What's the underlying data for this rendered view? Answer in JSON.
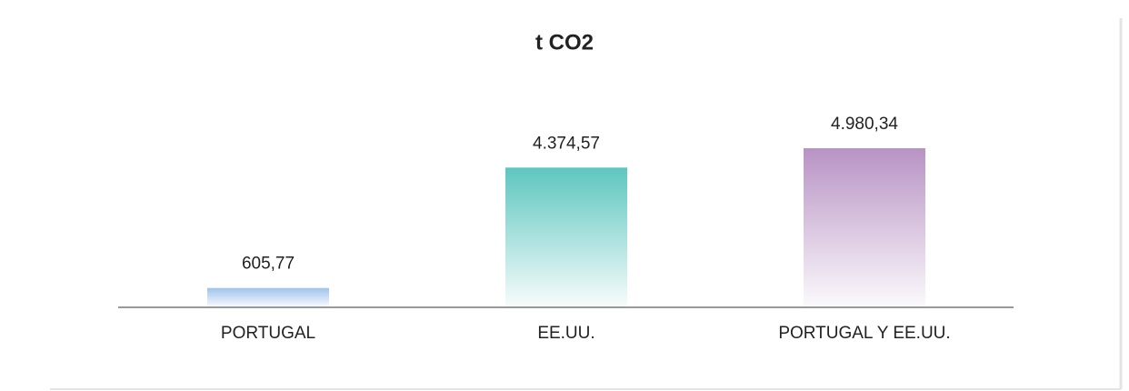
{
  "chart_data": {
    "type": "bar",
    "title": "t CO2",
    "categories": [
      "PORTUGAL",
      "EE.UU.",
      "PORTUGAL Y EE.UU."
    ],
    "values": [
      605.77,
      4374.57,
      4980.34
    ],
    "value_labels": [
      "605,77",
      "4.374,57",
      "4.980,34"
    ],
    "colors": [
      "#9fc3ea",
      "#5ec6bf",
      "#b893c4"
    ]
  }
}
